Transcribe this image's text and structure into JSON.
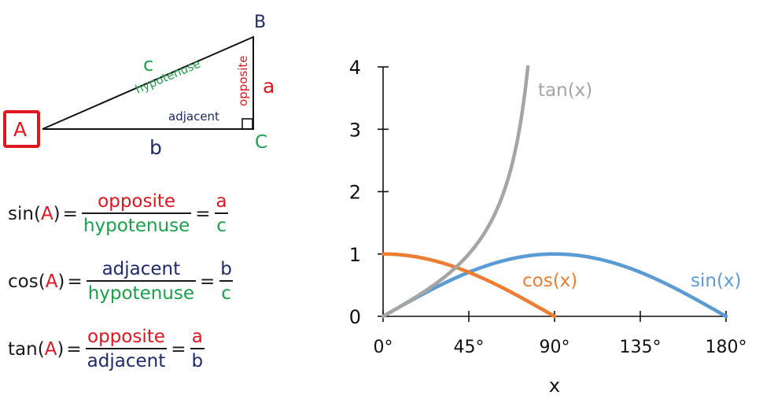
{
  "triangle": {
    "vertices": {
      "A": "A",
      "B": "B",
      "C": "C"
    },
    "sides": {
      "a": "a",
      "b": "b",
      "c": "c"
    },
    "side_names": {
      "hypotenuse": "hypotenuse",
      "opposite": "opposite",
      "adjacent": "adjacent"
    }
  },
  "formulas": [
    {
      "func": "sin(",
      "angle": "A",
      "close": ")",
      "eq": "=",
      "num": "opposite",
      "den": "hypotenuse",
      "eq2": "=",
      "num_short": "a",
      "den_short": "c"
    },
    {
      "func": "cos(",
      "angle": "A",
      "close": ")",
      "eq": "=",
      "num": "adjacent",
      "den": "hypotenuse",
      "eq2": "=",
      "num_short": "b",
      "den_short": "c"
    },
    {
      "func": "tan(",
      "angle": "A",
      "close": ")",
      "eq": "=",
      "num": "opposite",
      "den": "adjacent",
      "eq2": "=",
      "num_short": "a",
      "den_short": "b"
    }
  ],
  "colors": {
    "red": "#e0171f",
    "green": "#1aa14a",
    "navy": "#1f2a6b",
    "sin": "#5b9bd5",
    "cos": "#ed7d31",
    "tan": "#a5a5a5"
  },
  "chart_data": {
    "type": "line",
    "title": "",
    "xlabel": "x",
    "ylabel": "",
    "x_ticks": [
      "0°",
      "45°",
      "90°",
      "135°",
      "180°"
    ],
    "y_ticks": [
      "0",
      "1",
      "2",
      "3",
      "4"
    ],
    "xlim": [
      0,
      180
    ],
    "ylim": [
      0,
      4
    ],
    "grid": false,
    "legend": "inline labels",
    "series": [
      {
        "name": "sin(x)",
        "color": "#5b9bd5",
        "x": [
          0,
          15,
          30,
          45,
          60,
          75,
          90,
          105,
          120,
          135,
          150,
          165,
          180
        ],
        "values": [
          0,
          0.259,
          0.5,
          0.707,
          0.866,
          0.966,
          1,
          0.966,
          0.866,
          0.707,
          0.5,
          0.259,
          0
        ]
      },
      {
        "name": "cos(x)",
        "color": "#ed7d31",
        "x": [
          0,
          15,
          30,
          45,
          60,
          75,
          90
        ],
        "values": [
          1,
          0.966,
          0.866,
          0.707,
          0.5,
          0.259,
          0
        ]
      },
      {
        "name": "tan(x)",
        "color": "#a5a5a5",
        "x": [
          0,
          15,
          30,
          45,
          60,
          70,
          76
        ],
        "values": [
          0,
          0.268,
          0.577,
          1,
          1.732,
          2.747,
          4.0
        ]
      }
    ],
    "annotations": [
      "tan(x)",
      "cos(x)",
      "sin(x)"
    ]
  }
}
